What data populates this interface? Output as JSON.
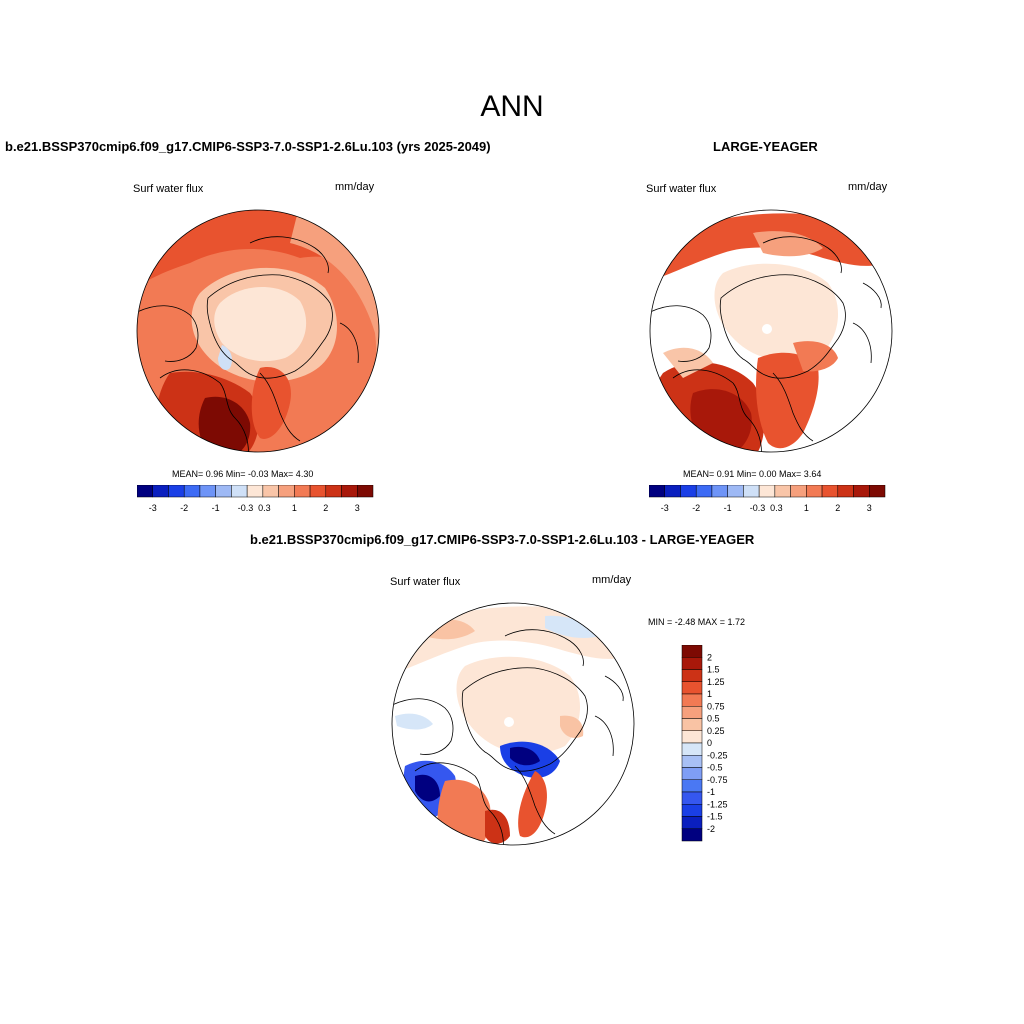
{
  "title": "ANN",
  "colors": {
    "scale": [
      "#000080",
      "#0a1fbf",
      "#1a3fe6",
      "#3d6bf5",
      "#6e94f7",
      "#9eb9f5",
      "#cfe0f7",
      "#fde6d6",
      "#f9c5a8",
      "#f6a07d",
      "#f27a54",
      "#e8532f",
      "#cc3216",
      "#a8180a",
      "#7d0a03"
    ],
    "diff_scale": [
      "#000080",
      "#0a1fbf",
      "#1a3fe6",
      "#3557ef",
      "#4a78f3",
      "#7f9ef5",
      "#a8c0f5",
      "#d6e6f8",
      "#fde6d6",
      "#f9c3a4",
      "#f6a07d",
      "#f27a54",
      "#e8532f",
      "#cc3216",
      "#a8180a",
      "#7d0a03"
    ],
    "coast": "#000000",
    "missing": "#ffffff"
  },
  "panels": [
    {
      "id": "case",
      "title": "b.e21.BSSP370cmip6.f09_g17.CMIP6-SSP3-7.0-SSP1-2.6Lu.103 (yrs 2025-2049)",
      "variable": "Surf water flux",
      "units": "mm/day",
      "stats_text": "MEAN=   0.96  Min=  -0.03  Max=   4.30",
      "colorbar_ticks": [
        "-3",
        "-2",
        "-1",
        "-0.3",
        "0.3",
        "1",
        "2",
        "3"
      ]
    },
    {
      "id": "obs",
      "title": "LARGE-YEAGER",
      "variable": "Surf water flux",
      "units": "mm/day",
      "stats_text": "MEAN=   0.91  Min=   0.00  Max=   3.64",
      "colorbar_ticks": [
        "-3",
        "-2",
        "-1",
        "-0.3",
        "0.3",
        "1",
        "2",
        "3"
      ]
    },
    {
      "id": "diff",
      "title": "b.e21.BSSP370cmip6.f09_g17.CMIP6-SSP3-7.0-SSP1-2.6Lu.103 - LARGE-YEAGER",
      "variable": "Surf water flux",
      "units": "mm/day",
      "minmax_text": "MIN =  -2.48 MAX =   1.72",
      "colorbar_labels": [
        "2",
        "1.5",
        "1.25",
        "1",
        "0.75",
        "0.5",
        "0.25",
        "0",
        "-0.25",
        "-0.5",
        "-0.75",
        "-1",
        "-1.25",
        "-1.5",
        "-2"
      ]
    }
  ]
}
